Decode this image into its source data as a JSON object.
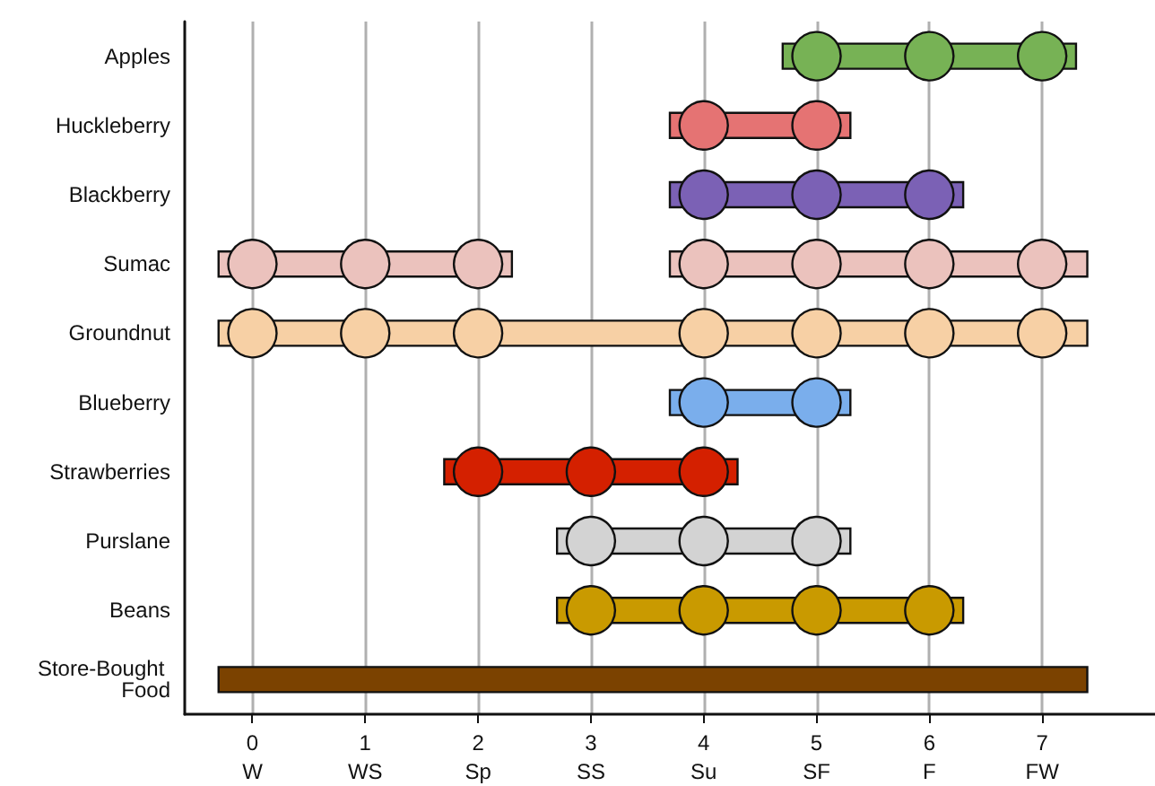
{
  "chart_data": {
    "type": "bar",
    "orientation": "horizontal",
    "grid": "x",
    "marker": "circle",
    "categories": [
      "Apples",
      "Huckleberry",
      "Blackberry",
      "Sumac",
      "Groundnut",
      "Blueberry",
      "Strawberries",
      "Purslane",
      "Beans",
      "Store-Bought Food"
    ],
    "xlim": [
      -0.6,
      8
    ],
    "xticks": [
      {
        "value": 0,
        "label": "0\nW"
      },
      {
        "value": 1,
        "label": "1\nWS"
      },
      {
        "value": 2,
        "label": "2\nSp"
      },
      {
        "value": 3,
        "label": "3\nSS"
      },
      {
        "value": 4,
        "label": "4\nSu"
      },
      {
        "value": 5,
        "label": "5\nSF"
      },
      {
        "value": 6,
        "label": "6\nF"
      },
      {
        "value": 7,
        "label": "7\nFW"
      }
    ],
    "series": [
      {
        "base": [
          4.7,
          3.7,
          3.7,
          -0.3,
          -0.3,
          3.7,
          1.7,
          2.7,
          2.7,
          -0.3
        ],
        "values": [
          2.6,
          1.6,
          2.6,
          2.6,
          7.7,
          1.6,
          2.6,
          2.6,
          3.6,
          7.7
        ],
        "colors": [
          "#77b255",
          "#e57373",
          "#7b61b5",
          "#ebc2bd",
          "#f7d0a5",
          "#7aaeec",
          "#d42000",
          "#d3d3d3",
          "#c99a00",
          "#7b4200"
        ]
      },
      {
        "base": [
          null,
          null,
          null,
          3.7,
          null,
          null,
          null,
          null,
          null,
          null
        ],
        "values": [
          null,
          null,
          null,
          3.7,
          null,
          null,
          null,
          null,
          null,
          null
        ],
        "color": "#ebc2bd"
      },
      {
        "type": "scatter",
        "color": "#77b255",
        "x": [
          "Apples",
          "Apples",
          "Apples"
        ],
        "values": [
          5,
          6,
          7
        ]
      },
      {
        "type": "scatter",
        "color": "#e57373",
        "x": [
          "Huckleberry",
          "Huckleberry"
        ],
        "values": [
          4,
          5
        ]
      },
      {
        "type": "scatter",
        "color": "#7b61b5",
        "x": [
          "Blackberry",
          "Blackberry",
          "Blackberry"
        ],
        "values": [
          4,
          5,
          6
        ]
      },
      {
        "type": "scatter",
        "color": "#ebc2bd",
        "x": [
          "Sumac",
          "Sumac",
          "Sumac",
          "Sumac",
          "Sumac",
          "Sumac",
          "Sumac"
        ],
        "values": [
          0,
          1,
          2,
          4,
          5,
          6,
          7
        ]
      },
      {
        "type": "scatter",
        "color": "#f7d0a5",
        "x": [
          "Groundnut",
          "Groundnut",
          "Groundnut",
          "Groundnut",
          "Groundnut",
          "Groundnut",
          "Groundnut"
        ],
        "values": [
          0,
          1,
          2,
          4,
          5,
          6,
          7
        ]
      },
      {
        "type": "scatter",
        "color": "#7aaeec",
        "x": [
          "Blueberry",
          "Blueberry"
        ],
        "values": [
          4,
          5
        ]
      },
      {
        "type": "scatter",
        "color": "#d42000",
        "x": [
          "Strawberries",
          "Strawberries",
          "Strawberries"
        ],
        "values": [
          2,
          3,
          4
        ]
      },
      {
        "type": "scatter",
        "color": "#d3d3d3",
        "x": [
          "Purslane",
          "Purslane",
          "Purslane"
        ],
        "values": [
          3,
          4,
          5
        ]
      },
      {
        "type": "scatter",
        "color": "#c99a00",
        "x": [
          "Beans",
          "Beans",
          "Beans",
          "Beans"
        ],
        "values": [
          3,
          4,
          5,
          6
        ]
      }
    ]
  }
}
